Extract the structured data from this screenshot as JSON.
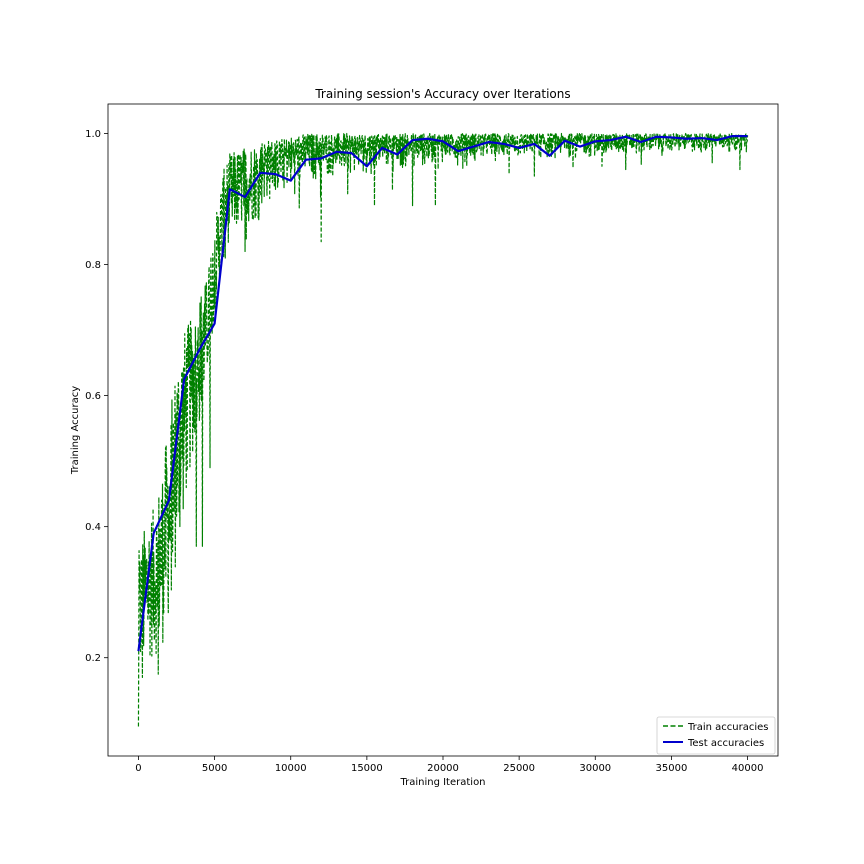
{
  "chart_data": {
    "type": "line",
    "title": "Training session's Accuracy over Iterations",
    "xlabel": "Training Iteration",
    "ylabel": "Training Accuracy",
    "xlim": [
      -2000,
      42000
    ],
    "ylim": [
      0.05,
      1.045
    ],
    "xticks": [
      0,
      5000,
      10000,
      15000,
      20000,
      25000,
      30000,
      35000,
      40000
    ],
    "xtick_labels": [
      "0",
      "5000",
      "10000",
      "15000",
      "20000",
      "25000",
      "30000",
      "35000",
      "40000"
    ],
    "yticks": [
      0.2,
      0.4,
      0.6,
      0.8,
      1.0
    ],
    "ytick_labels": [
      "0.2",
      "0.4",
      "0.6",
      "0.8",
      "1.0"
    ],
    "grid": false,
    "legend_position": "bottom-right",
    "series": [
      {
        "name": "Train accuracies",
        "color": "#008000",
        "style": "dashed",
        "envelope": {
          "x": [
            0,
            500,
            1000,
            1500,
            2000,
            2500,
            3000,
            3500,
            4000,
            4500,
            5000,
            5500,
            6000,
            7000,
            8000,
            9000,
            10000,
            11000,
            12000,
            14000,
            16000,
            18000,
            20000,
            25000,
            30000,
            35000,
            40000
          ],
          "low": [
            0.15,
            0.19,
            0.2,
            0.21,
            0.26,
            0.34,
            0.42,
            0.5,
            0.55,
            0.62,
            0.72,
            0.8,
            0.84,
            0.86,
            0.87,
            0.89,
            0.9,
            0.91,
            0.92,
            0.93,
            0.935,
            0.94,
            0.95,
            0.955,
            0.96,
            0.965,
            0.97
          ],
          "high": [
            0.36,
            0.41,
            0.43,
            0.48,
            0.56,
            0.66,
            0.7,
            0.72,
            0.75,
            0.78,
            0.86,
            0.94,
            0.97,
            0.98,
            0.99,
            0.99,
            0.995,
            1.0,
            1.0,
            1.0,
            1.0,
            1.0,
            1.0,
            1.0,
            1.0,
            1.0,
            1.0
          ]
        },
        "outliers": [
          {
            "x": 0,
            "y": 0.095
          },
          {
            "x": 250,
            "y": 0.17
          },
          {
            "x": 1300,
            "y": 0.175
          },
          {
            "x": 2100,
            "y": 0.38
          },
          {
            "x": 3800,
            "y": 0.37
          },
          {
            "x": 4200,
            "y": 0.37
          },
          {
            "x": 4700,
            "y": 0.49
          },
          {
            "x": 5700,
            "y": 0.81
          },
          {
            "x": 7000,
            "y": 0.82
          },
          {
            "x": 12000,
            "y": 0.835
          },
          {
            "x": 15500,
            "y": 0.89
          },
          {
            "x": 18000,
            "y": 0.89
          },
          {
            "x": 19500,
            "y": 0.89
          },
          {
            "x": 26000,
            "y": 0.935
          },
          {
            "x": 32000,
            "y": 0.945
          },
          {
            "x": 39500,
            "y": 0.945
          }
        ]
      },
      {
        "name": "Test accuracies",
        "color": "#0000cc",
        "style": "solid",
        "x": [
          0,
          1000,
          2000,
          3000,
          4000,
          5000,
          6000,
          7000,
          8000,
          9000,
          10000,
          11000,
          12000,
          13000,
          14000,
          15000,
          16000,
          17000,
          18000,
          19000,
          20000,
          21000,
          22000,
          23000,
          24000,
          25000,
          26000,
          27000,
          28000,
          29000,
          30000,
          31000,
          32000,
          33000,
          34000,
          35000,
          36000,
          37000,
          38000,
          39000,
          40000
        ],
        "y": [
          0.21,
          0.39,
          0.44,
          0.625,
          0.67,
          0.71,
          0.915,
          0.903,
          0.94,
          0.938,
          0.928,
          0.96,
          0.962,
          0.972,
          0.97,
          0.95,
          0.978,
          0.968,
          0.99,
          0.992,
          0.988,
          0.973,
          0.98,
          0.987,
          0.984,
          0.978,
          0.984,
          0.966,
          0.989,
          0.98,
          0.988,
          0.99,
          0.995,
          0.987,
          0.995,
          0.994,
          0.992,
          0.993,
          0.99,
          0.996,
          0.996
        ]
      }
    ]
  }
}
